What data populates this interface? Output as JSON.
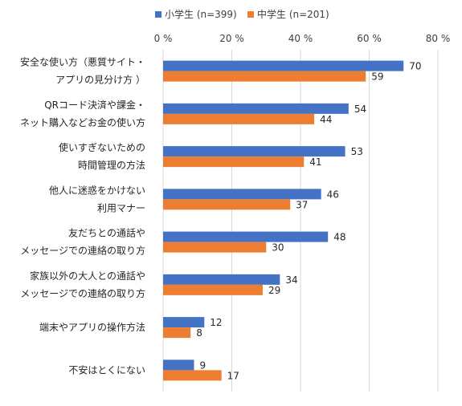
{
  "chart_data": {
    "type": "bar",
    "orientation": "horizontal",
    "categories": [
      [
        "安全な使い方（悪質サイト・",
        "アプリの見分け方 ）"
      ],
      [
        "QRコード決済や課金・",
        "ネット購入などお金の使い方"
      ],
      [
        "使いすぎないための",
        "時間管理の方法"
      ],
      [
        "他人に迷惑をかけない",
        "利用マナー"
      ],
      [
        "友だちとの通話や",
        "メッセージでの連絡の取り方"
      ],
      [
        "家族以外の大人との通話や",
        "メッセージでの連絡の取り方"
      ],
      [
        "端末やアプリの操作方法"
      ],
      [
        "不安はとくにない"
      ]
    ],
    "series": [
      {
        "name": "小学生 (n=399)",
        "color": "#4472C4",
        "values": [
          70,
          54,
          53,
          46,
          48,
          34,
          12,
          9
        ]
      },
      {
        "name": "中学生 (n=201)",
        "color": "#ED7D31",
        "values": [
          59,
          44,
          41,
          37,
          30,
          29,
          8,
          17
        ]
      }
    ],
    "xlim": [
      0,
      80
    ],
    "ticks": [
      0,
      20,
      40,
      60,
      80
    ],
    "tick_labels": [
      "0 %",
      "20 %",
      "40 %",
      "60 %",
      "80 %"
    ],
    "grid": true,
    "legend_position": "top",
    "title": "",
    "xlabel": "",
    "ylabel": ""
  }
}
